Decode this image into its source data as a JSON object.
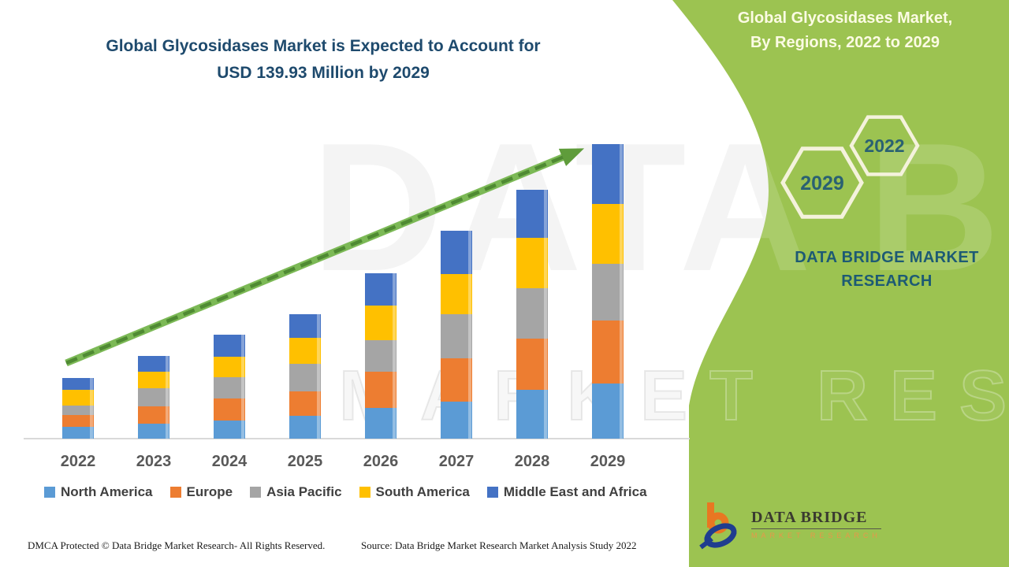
{
  "header": {
    "title_line1": "Global Glycosidases Market is Expected to Account for",
    "title_line2": "USD 139.93 Million by 2029"
  },
  "side_panel": {
    "bg_color": "#9cc351",
    "title_line1": "Global Glycosidases Market,",
    "title_line2": "By Regions, 2022 to 2029",
    "hexagon_back_year": "2022",
    "hexagon_front_year": "2029",
    "brand_line1": "DATA BRIDGE MARKET",
    "brand_line2": "RESEARCH",
    "brand_color": "#1d5a74",
    "hexagon_outline_color": "#f4f2dc",
    "hexagon_text_color": "#2a6172"
  },
  "watermark": {
    "text1": "DATA BRIDGE",
    "text2": "MARKET RESEARCH"
  },
  "chart_data": {
    "type": "bar",
    "stacked": true,
    "title": "Global Glycosidases Market, By Regions, 2022 to 2029",
    "unit": "USD Million",
    "categories": [
      "2022",
      "2023",
      "2024",
      "2025",
      "2026",
      "2027",
      "2028",
      "2029"
    ],
    "series": [
      {
        "name": "North America",
        "color": "#5B9BD5",
        "values": [
          5.8,
          7.1,
          8.8,
          11.0,
          14.6,
          17.6,
          23.1,
          26.1
        ]
      },
      {
        "name": "Europe",
        "color": "#ED7D31",
        "values": [
          5.4,
          8.1,
          10.2,
          11.5,
          17.2,
          20.6,
          24.3,
          29.9
        ]
      },
      {
        "name": "Asia Pacific",
        "color": "#A5A5A5",
        "values": [
          4.6,
          8.7,
          10.1,
          13.2,
          15.0,
          21.0,
          24.3,
          27.1
        ]
      },
      {
        "name": "South America",
        "color": "#FFC000",
        "values": [
          7.5,
          8.1,
          9.8,
          12.1,
          16.6,
          19.1,
          23.7,
          28.6
        ]
      },
      {
        "name": "Middle East and Africa",
        "color": "#4472C4",
        "values": [
          5.6,
          7.5,
          10.4,
          11.2,
          15.2,
          20.6,
          23.1,
          28.2
        ]
      }
    ],
    "totals_estimated": [
      28.9,
      39.5,
      49.3,
      59.0,
      78.6,
      98.9,
      118.5,
      139.93
    ],
    "ylim": [
      0,
      139.93
    ],
    "grid": false,
    "y_axis_visible": false,
    "legend_position": "bottom",
    "annotations": [
      "Upward green trend arrow from 2022 to 2029",
      "2029 total = USD 139.93 Million"
    ]
  },
  "footer": {
    "left": "DMCA Protected © Data Bridge Market Research- All Rights Reserved.",
    "source": "Source: Data Bridge Market Research Market Analysis Study 2022"
  },
  "logo": {
    "title": "DATA BRIDGE",
    "subtitle": "MARKET RESEARCH"
  }
}
